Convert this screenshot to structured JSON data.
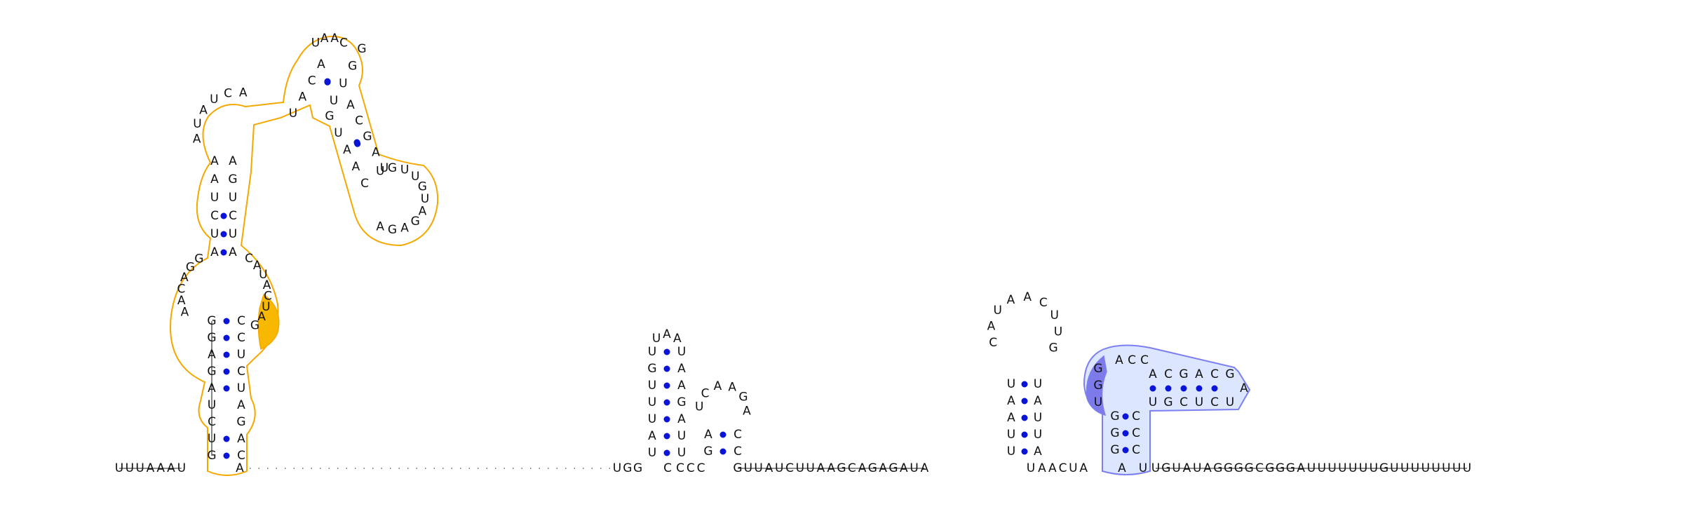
{
  "colors": {
    "background": "#ffffff",
    "base_text": "#111111",
    "base_pair_dot": "#0a14d8",
    "orange_outline": "#f5a800",
    "orange_fill": "#f9b800",
    "blue_outline": "#7b7ff0",
    "blue_fill": "#dde6ff",
    "blue_highlight": "#7d7aea"
  },
  "molecule": {
    "five_prime_tail": "UUUAAAU",
    "hairpin_1": {
      "left_strand": "GUCUAGAGG",
      "loop": "UAAC",
      "right_strand": "CCUCUAGAC",
      "inner_loop_left": "AACAGG",
      "inner_loop_right": "CAUACUAG"
    },
    "gap_3prime_of_hairpin_1": "A",
    "dotted_connector": "unpaired backbone",
    "middle_segment_1": "UGG",
    "stem_2": {
      "left": "UAUUUGU",
      "loop": "UAA",
      "right": "UAAGAUU"
    },
    "segment_after_stem_2": "CCC",
    "stem_3": {
      "left": "GA",
      "loop": "UCAAGA",
      "right": "CC"
    },
    "long_linker": "GUUAUCUUAAGCAGAGAUA",
    "stem_4": {
      "left": "UUAAU",
      "loop": "CAUAACUUG",
      "right": "AUUAU"
    },
    "linker_4_5": "AACUA",
    "stem_5": {
      "left": "GGG",
      "loop_left": "UGG",
      "loop_right": "ACC",
      "right": "CCC"
    },
    "stem_5b": {
      "top": "ACGACG",
      "tip": "A",
      "bottom": "UGCUCU"
    },
    "three_prime_tail": "UGUAUAGGGGCGGGAUUUUUUUGUUUUUUUU"
  }
}
